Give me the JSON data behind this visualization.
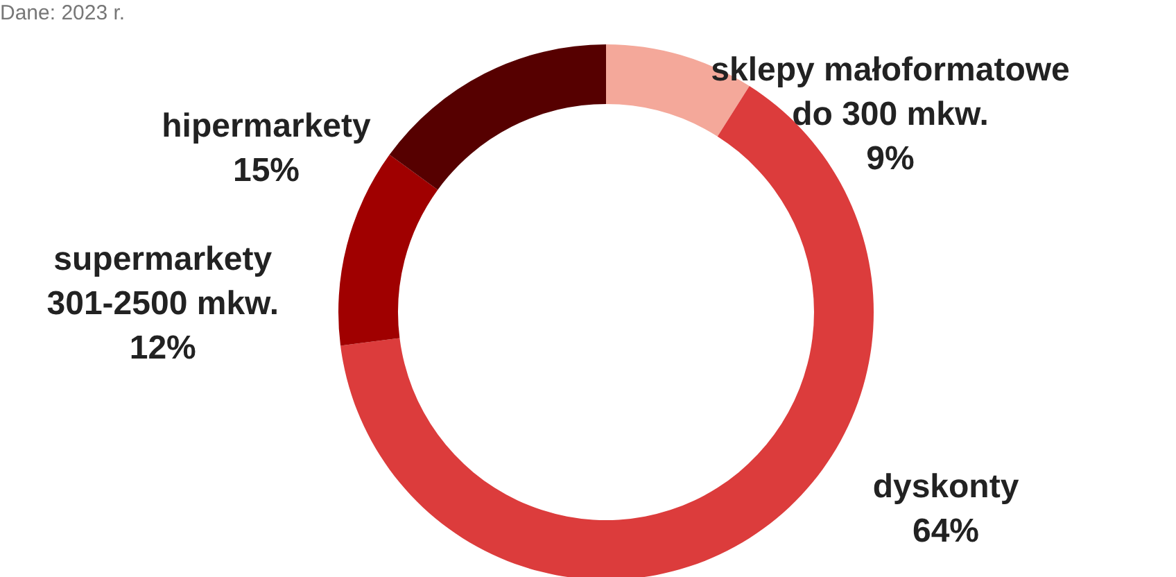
{
  "chart_data": {
    "type": "donut",
    "categories": [
      "sklepy małoformatowe do 300 mkw.",
      "dyskonty",
      "supermarkety 301-2500 mkw.",
      "hipermarkety"
    ],
    "values": [
      9,
      64,
      12,
      15
    ],
    "value_labels": [
      "9%",
      "64%",
      "12%",
      "15%"
    ],
    "colors": [
      "#f4a89a",
      "#dc3c3c",
      "#a00000",
      "#560000"
    ],
    "annotations": [
      "Dane: 2023 r."
    ]
  }
}
